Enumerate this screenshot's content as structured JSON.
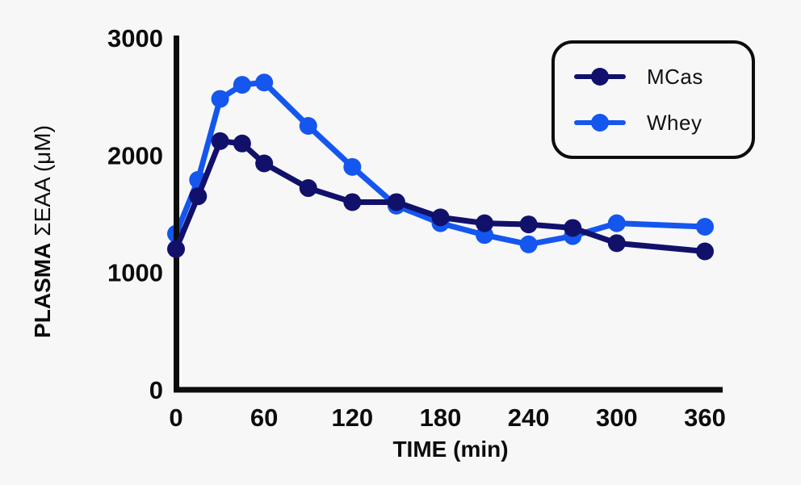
{
  "page": {
    "background": "#f7f7f8"
  },
  "chart_data": {
    "type": "line",
    "x": [
      0,
      15,
      30,
      45,
      60,
      90,
      120,
      150,
      180,
      210,
      240,
      270,
      300,
      360
    ],
    "series": [
      {
        "name": "MCas",
        "color": "#11116b",
        "values": [
          1200,
          1650,
          2120,
          2100,
          1930,
          1720,
          1600,
          1600,
          1470,
          1420,
          1410,
          1380,
          1250,
          1180
        ]
      },
      {
        "name": "Whey",
        "color": "#1456ee",
        "values": [
          1330,
          1790,
          2480,
          2600,
          2620,
          2250,
          1900,
          1570,
          1420,
          1320,
          1240,
          1310,
          1420,
          1390
        ]
      }
    ],
    "xlabel": "TIME (min)",
    "ylabel": "PLASMA ΣEAA (μM)",
    "ylabel_parts": [
      "PLASMA",
      "ΣEAA (μM)"
    ],
    "x_ticks": [
      0,
      60,
      120,
      180,
      240,
      300,
      360
    ],
    "y_ticks": [
      0,
      1000,
      2000,
      3000
    ],
    "xlim": [
      0,
      360
    ],
    "ylim": [
      0,
      3000
    ],
    "grid": false,
    "axis_color": "#0c0c0c",
    "marker": "circle",
    "legend": {
      "position": "top-right",
      "items": [
        "MCas",
        "Whey"
      ]
    }
  }
}
